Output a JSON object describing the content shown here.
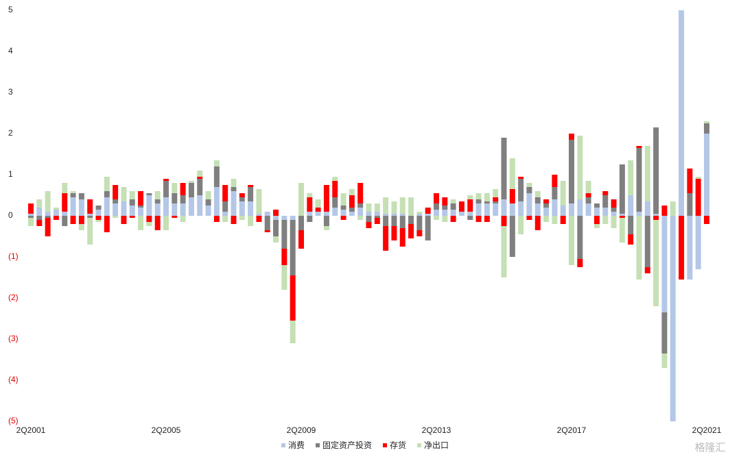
{
  "chart_data": {
    "type": "bar",
    "stacked": true,
    "categories": [
      "2Q2001",
      null,
      null,
      null,
      null,
      null,
      null,
      null,
      null,
      null,
      null,
      null,
      null,
      null,
      null,
      null,
      "2Q2005",
      null,
      null,
      null,
      null,
      null,
      null,
      null,
      null,
      null,
      null,
      null,
      null,
      null,
      null,
      null,
      "2Q2009",
      null,
      null,
      null,
      null,
      null,
      null,
      null,
      null,
      null,
      null,
      null,
      null,
      null,
      null,
      null,
      "2Q2013",
      null,
      null,
      null,
      null,
      null,
      null,
      null,
      null,
      null,
      null,
      null,
      null,
      null,
      null,
      null,
      "2Q2017",
      null,
      null,
      null,
      null,
      null,
      null,
      null,
      null,
      null,
      null,
      null,
      null,
      null,
      null,
      null,
      "2Q2021"
    ],
    "series": [
      {
        "name": "消费",
        "color": "#b4c7e7",
        "values": [
          0.05,
          0.2,
          0.1,
          0.15,
          0.1,
          0.45,
          0.4,
          0.05,
          0.15,
          0.45,
          0.3,
          0.35,
          0.25,
          0.2,
          0.5,
          0.3,
          0.45,
          0.3,
          0.3,
          0.45,
          0.5,
          0.25,
          0.7,
          0.1,
          0.6,
          0.35,
          0.35,
          0.05,
          0.1,
          -0.1,
          -0.1,
          -0.1,
          0,
          0.1,
          0.1,
          0.1,
          0.2,
          0.15,
          0.1,
          0.2,
          0.1,
          0.1,
          0.05,
          0.05,
          0.05,
          0,
          0.05,
          0.05,
          0.15,
          0.15,
          0.15,
          0.1,
          0.1,
          0.3,
          0.3,
          0.3,
          0.4,
          0.3,
          0.35,
          0.55,
          0.3,
          0.2,
          0.4,
          0.25,
          0.3,
          0.4,
          0.3,
          0.2,
          0.2,
          0.1,
          0.05,
          0.5,
          0.1,
          0.35,
          0.05,
          -2.35,
          -5,
          5,
          -1.55,
          -1.3,
          2.0
        ]
      },
      {
        "name": "固定资产投资",
        "color": "#7f7f7f",
        "values": [
          -0.05,
          -0.1,
          -0.05,
          0,
          -0.25,
          0.1,
          0.15,
          -0.05,
          0.1,
          0.15,
          0.1,
          0,
          0.15,
          0.05,
          0.05,
          0.1,
          0.4,
          0.25,
          0.2,
          0.35,
          0.4,
          0.15,
          0.5,
          0.25,
          0.1,
          0.1,
          0.35,
          0,
          -0.35,
          -0.4,
          -0.7,
          -1.35,
          -0.35,
          -0.15,
          0,
          -0.25,
          0.25,
          0.1,
          0.1,
          0.1,
          -0.15,
          -0.05,
          -0.25,
          -0.25,
          -0.3,
          -0.2,
          -0.35,
          -0.6,
          0.15,
          0.1,
          0.15,
          0,
          -0.1,
          0.1,
          0.05,
          0.05,
          1.5,
          -1.0,
          0.55,
          0.15,
          0.15,
          0.1,
          0.3,
          0,
          1.55,
          -1.05,
          0.15,
          0.1,
          0.3,
          0.1,
          1.2,
          -0.45,
          1.55,
          -1.25,
          2.1,
          -1.0,
          0,
          0,
          0.55,
          0,
          0.25
        ]
      },
      {
        "name": "存货",
        "color": "#ff0000",
        "values": [
          0.25,
          -0.15,
          -0.45,
          -0.1,
          0.45,
          -0.2,
          -0.2,
          0.35,
          -0.1,
          -0.4,
          0.35,
          -0.2,
          -0.05,
          0.35,
          -0.15,
          -0.35,
          0.05,
          -0.05,
          0.3,
          0,
          0.05,
          0,
          -0.15,
          0.4,
          -0.2,
          0.1,
          0.05,
          -0.15,
          -0.05,
          0.15,
          -0.4,
          -1.1,
          -0.45,
          0.35,
          0.1,
          0.65,
          0.4,
          -0.1,
          0.3,
          0.5,
          -0.15,
          -0.15,
          -0.6,
          -0.35,
          -0.45,
          -0.35,
          -0.15,
          0.15,
          0.25,
          0.2,
          -0.15,
          0.25,
          0.3,
          -0.15,
          -0.15,
          0.1,
          -0.25,
          0.35,
          0.05,
          -0.1,
          -0.35,
          0.1,
          0.3,
          -0.2,
          0.15,
          -0.2,
          0.1,
          -0.2,
          0.1,
          0.2,
          -0.05,
          -0.25,
          0.05,
          -0.15,
          -0.1,
          0.25,
          0,
          -1.55,
          0.6,
          0.9,
          -0.2
        ]
      },
      {
        "name": "净出口",
        "color": "#c5e0b4",
        "values": [
          -0.2,
          0.2,
          0.5,
          0.05,
          0.25,
          0.05,
          -0.15,
          -0.65,
          -0.05,
          0.35,
          -0.05,
          0.35,
          0.2,
          -0.35,
          -0.1,
          0.2,
          -0.35,
          0.25,
          -0.15,
          0.05,
          0.15,
          0.2,
          0.15,
          -0.15,
          0.2,
          -0.1,
          -0.25,
          0.6,
          0,
          -0.15,
          -0.6,
          -0.55,
          0.8,
          0.1,
          0.2,
          -0.1,
          0.1,
          0.3,
          0.15,
          -0.1,
          0.2,
          0.2,
          0.4,
          0.3,
          0.4,
          0.45,
          0.05,
          0,
          -0.1,
          -0.15,
          0.1,
          0,
          0.1,
          0.15,
          0.2,
          0.2,
          -1.25,
          0.75,
          -0.45,
          0.1,
          0.15,
          -0.15,
          -0.2,
          0.6,
          -1.2,
          1.55,
          0.3,
          -0.1,
          -0.2,
          -0.3,
          -0.6,
          0.85,
          -1.55,
          1.35,
          -2.1,
          -0.35,
          0.35,
          0,
          0,
          0.05,
          0.05
        ]
      }
    ],
    "ylim": [
      -5,
      5
    ],
    "yticks": [
      5,
      4,
      3,
      2,
      1,
      0,
      {
        "value": -1,
        "label": "(1)"
      },
      {
        "value": -2,
        "label": "(2)"
      },
      {
        "value": -3,
        "label": "(3)"
      },
      {
        "value": -4,
        "label": "(4)"
      },
      {
        "value": -5,
        "label": "(5)"
      }
    ],
    "negative_tick_color": "#e00000",
    "legend": "bottom",
    "watermark": "格隆汇"
  }
}
